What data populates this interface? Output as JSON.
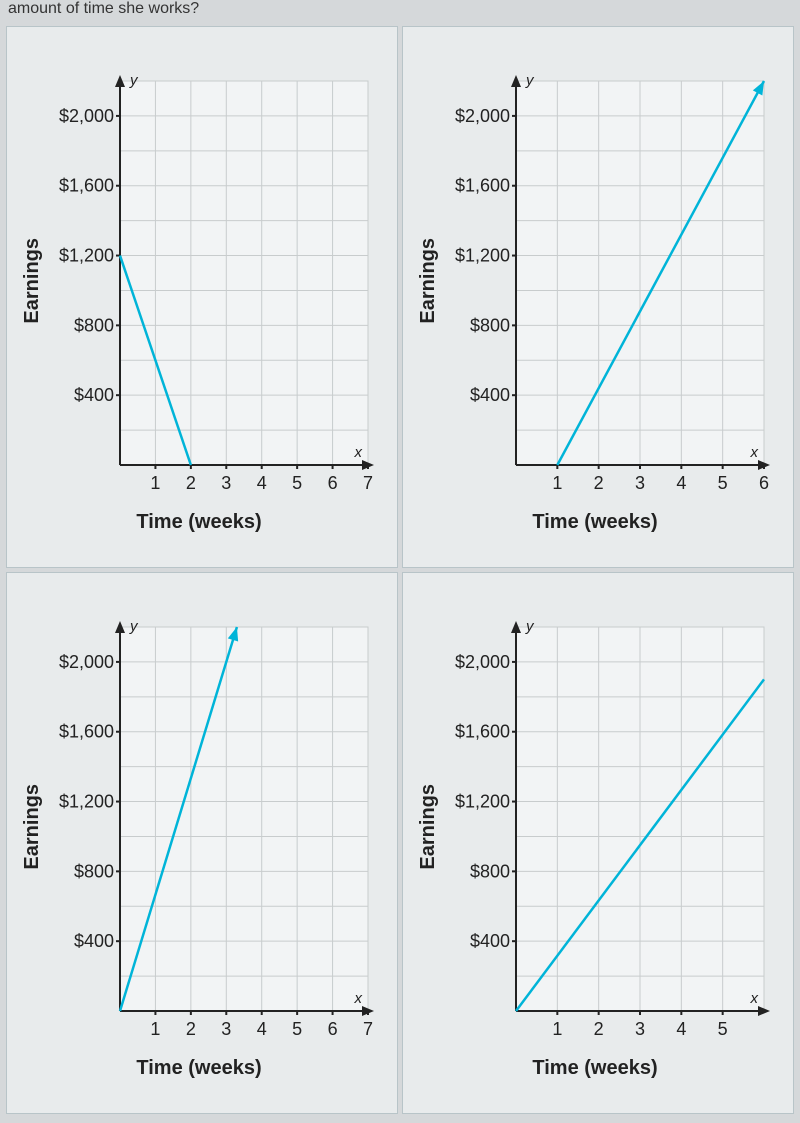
{
  "header_text": "amount of time she works?",
  "charts": [
    {
      "ylabel": "Earnings",
      "xlabel": "Time (weeks)",
      "y_ticks": [
        "$400",
        "$800",
        "$1,200",
        "$1,600",
        "$2,000"
      ],
      "y_tick_vals": [
        400,
        800,
        1200,
        1600,
        2000
      ],
      "x_ticks": [
        "1",
        "2",
        "3",
        "4",
        "5",
        "6",
        "7"
      ],
      "x_tick_vals": [
        1,
        2,
        3,
        4,
        5,
        6,
        7
      ],
      "x_axis_label_char": "x",
      "y_axis_label_char": "y",
      "xlim": [
        0,
        7
      ],
      "ylim": [
        0,
        2200
      ],
      "y_grid_step": 200,
      "line": {
        "x1": 0,
        "y1": 1200,
        "x2": 2,
        "y2": 0
      },
      "arrow_end": false,
      "line_color": "#00b4d8",
      "line_width": 2.5,
      "bg_color": "#f2f4f5",
      "grid_color": "#c8cccd",
      "axis_color": "#222222",
      "tick_font_size": 18,
      "axis_char_font_size": 15,
      "y_tick_font_size": 18
    },
    {
      "ylabel": "Earnings",
      "xlabel": "Time (weeks)",
      "y_ticks": [
        "$400",
        "$800",
        "$1,200",
        "$1,600",
        "$2,000"
      ],
      "y_tick_vals": [
        400,
        800,
        1200,
        1600,
        2000
      ],
      "x_ticks": [
        "1",
        "2",
        "3",
        "4",
        "5",
        "6"
      ],
      "x_tick_vals": [
        1,
        2,
        3,
        4,
        5,
        6
      ],
      "x_axis_label_char": "x",
      "y_axis_label_char": "y",
      "xlim": [
        0,
        6
      ],
      "ylim": [
        0,
        2200
      ],
      "y_grid_step": 200,
      "line": {
        "x1": 1,
        "y1": 0,
        "x2": 6,
        "y2": 2200
      },
      "arrow_end": true,
      "line_color": "#00b4d8",
      "line_width": 2.5,
      "bg_color": "#f2f4f5",
      "grid_color": "#c8cccd",
      "axis_color": "#222222",
      "tick_font_size": 18,
      "axis_char_font_size": 15,
      "y_tick_font_size": 18
    },
    {
      "ylabel": "Earnings",
      "xlabel": "Time (weeks)",
      "y_ticks": [
        "$400",
        "$800",
        "$1,200",
        "$1,600",
        "$2,000"
      ],
      "y_tick_vals": [
        400,
        800,
        1200,
        1600,
        2000
      ],
      "x_ticks": [
        "1",
        "2",
        "3",
        "4",
        "5",
        "6",
        "7"
      ],
      "x_tick_vals": [
        1,
        2,
        3,
        4,
        5,
        6,
        7
      ],
      "x_axis_label_char": "x",
      "y_axis_label_char": "y",
      "xlim": [
        0,
        7
      ],
      "ylim": [
        0,
        2200
      ],
      "y_grid_step": 200,
      "line": {
        "x1": 0,
        "y1": 0,
        "x2": 3.3,
        "y2": 2200
      },
      "arrow_end": true,
      "line_color": "#00b4d8",
      "line_width": 2.5,
      "bg_color": "#f2f4f5",
      "grid_color": "#c8cccd",
      "axis_color": "#222222",
      "tick_font_size": 18,
      "axis_char_font_size": 15,
      "y_tick_font_size": 18
    },
    {
      "ylabel": "Earnings",
      "xlabel": "Time (weeks)",
      "y_ticks": [
        "$400",
        "$800",
        "$1,200",
        "$1,600",
        "$2,000"
      ],
      "y_tick_vals": [
        400,
        800,
        1200,
        1600,
        2000
      ],
      "x_ticks": [
        "1",
        "2",
        "3",
        "4",
        "5"
      ],
      "x_tick_vals": [
        1,
        2,
        3,
        4,
        5
      ],
      "x_axis_label_char": "x",
      "y_axis_label_char": "y",
      "xlim": [
        0,
        6
      ],
      "ylim": [
        0,
        2200
      ],
      "y_grid_step": 200,
      "line": {
        "x1": 0,
        "y1": 0,
        "x2": 6,
        "y2": 1900
      },
      "arrow_end": false,
      "line_color": "#00b4d8",
      "line_width": 2.5,
      "bg_color": "#f2f4f5",
      "grid_color": "#c8cccd",
      "axis_color": "#222222",
      "tick_font_size": 18,
      "axis_char_font_size": 15,
      "y_tick_font_size": 18
    }
  ]
}
